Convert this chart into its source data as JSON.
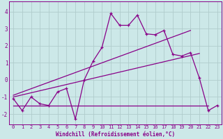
{
  "xlabel": "Windchill (Refroidissement éolien,°C)",
  "bg_color": "#cce8e8",
  "grid_color": "#b0cccc",
  "line_color": "#880088",
  "x_data": [
    0,
    1,
    2,
    3,
    4,
    5,
    6,
    7,
    8,
    9,
    10,
    11,
    12,
    13,
    14,
    15,
    16,
    17,
    18,
    19,
    20,
    21,
    22,
    23
  ],
  "y_main": [
    -1.1,
    -1.8,
    -1.0,
    -1.4,
    -1.5,
    -0.7,
    -0.5,
    -2.3,
    0.0,
    1.1,
    1.9,
    3.9,
    3.2,
    3.2,
    3.8,
    2.7,
    2.65,
    2.9,
    1.5,
    1.4,
    1.6,
    0.1,
    -1.8,
    -1.5
  ],
  "trend1_x": [
    0,
    22
  ],
  "trend1_y": [
    -1.5,
    -1.5
  ],
  "trend2_x": [
    0,
    21
  ],
  "trend2_y": [
    -1.0,
    1.55
  ],
  "trend3_x": [
    0,
    20
  ],
  "trend3_y": [
    -0.9,
    2.9
  ],
  "xlim": [
    -0.5,
    23.5
  ],
  "ylim": [
    -2.6,
    4.6
  ],
  "yticks": [
    -2,
    -1,
    0,
    1,
    2,
    3,
    4
  ],
  "xticks": [
    0,
    1,
    2,
    3,
    4,
    5,
    6,
    7,
    8,
    9,
    10,
    11,
    12,
    13,
    14,
    15,
    16,
    17,
    18,
    19,
    20,
    21,
    22,
    23
  ],
  "tick_fontsize": 5.0,
  "xlabel_fontsize": 5.5
}
